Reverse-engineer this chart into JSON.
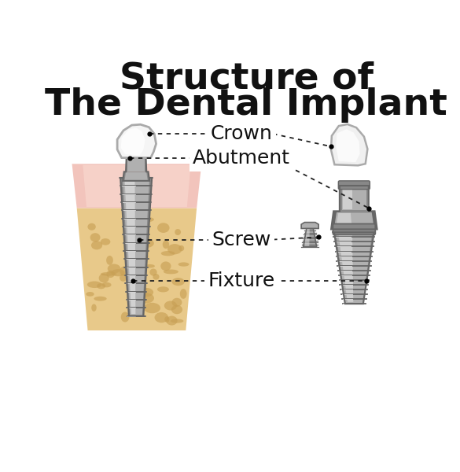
{
  "title_line1": "Structure of",
  "title_line2": "The Dental Implant",
  "labels": [
    "Crown",
    "Abutment",
    "Screw",
    "Fixture"
  ],
  "background_color": "#ffffff",
  "title_color": "#111111",
  "label_color": "#111111",
  "gum_pink_outer": "#f2c4bc",
  "gum_pink_inner": "#f8d5cc",
  "bone_tan": "#e8c98a",
  "bone_spot": "#c8a055",
  "metal_light": "#e0e0e0",
  "metal_mid": "#b0b0b0",
  "metal_dark": "#888888",
  "metal_darkest": "#666666",
  "crown_white": "#f5f5f5",
  "crown_light": "#e8e8e8",
  "crown_highlight": "#ffffff"
}
